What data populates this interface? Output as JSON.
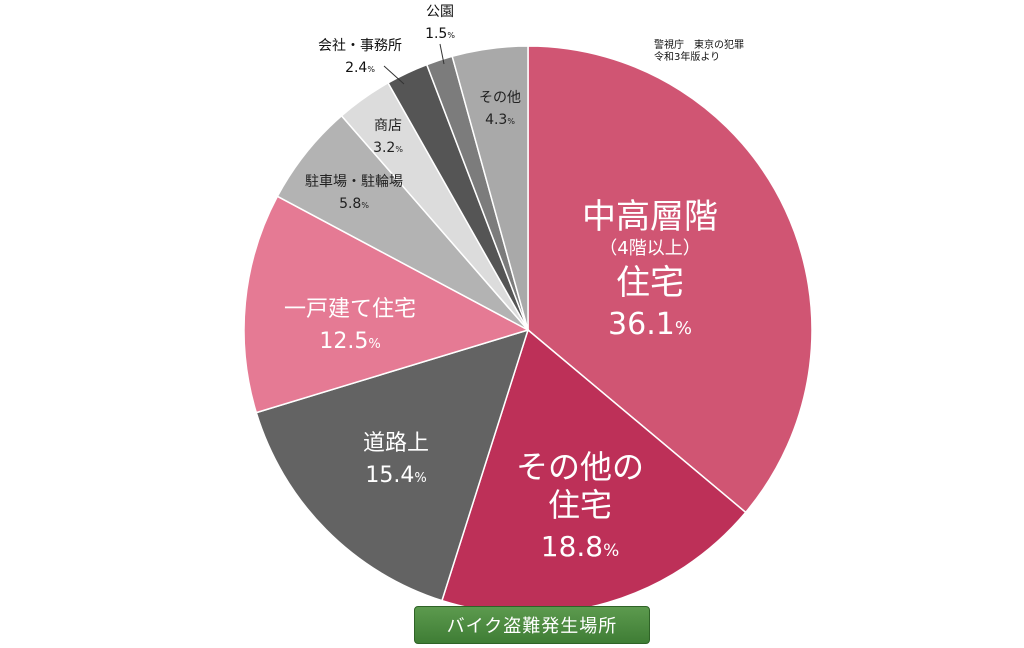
{
  "source": {
    "line1": "警視庁　東京の犯罪",
    "line2": "令和3年版より"
  },
  "caption": "バイク盗難発生場所",
  "chart_data": {
    "type": "pie",
    "start": "12 o'clock",
    "direction": "clockwise",
    "unit": "%",
    "slices": [
      {
        "lines": [
          "中高層階",
          "（4階以上）",
          "住宅"
        ],
        "value": 36.1,
        "value_label": "36.1",
        "color": "#d05573",
        "text_color": "#ffffff"
      },
      {
        "lines": [
          "その他の",
          "住宅"
        ],
        "value": 18.8,
        "value_label": "18.8",
        "color": "#bd3058",
        "text_color": "#ffffff"
      },
      {
        "lines": [
          "道路上"
        ],
        "value": 15.4,
        "value_label": "15.4",
        "color": "#636363",
        "text_color": "#ffffff"
      },
      {
        "lines": [
          "一戸建て住宅"
        ],
        "value": 12.5,
        "value_label": "12.5",
        "color": "#e57a94",
        "text_color": "#ffffff"
      },
      {
        "lines": [
          "駐車場・駐輪場"
        ],
        "value": 5.8,
        "value_label": "5.8",
        "color": "#b3b3b3",
        "text_color": "#222222"
      },
      {
        "lines": [
          "商店"
        ],
        "value": 3.2,
        "value_label": "3.2",
        "color": "#dcdcdc",
        "text_color": "#222222"
      },
      {
        "lines": [
          "会社・事務所"
        ],
        "value": 2.4,
        "value_label": "2.4",
        "color": "#555555",
        "text_color": "#111111"
      },
      {
        "lines": [
          "公園"
        ],
        "value": 1.5,
        "value_label": "1.5",
        "color": "#7c7c7c",
        "text_color": "#111111"
      },
      {
        "lines": [
          "その他"
        ],
        "value": 4.3,
        "value_label": "4.3",
        "color": "#a9a9a9",
        "text_color": "#222222"
      }
    ]
  }
}
